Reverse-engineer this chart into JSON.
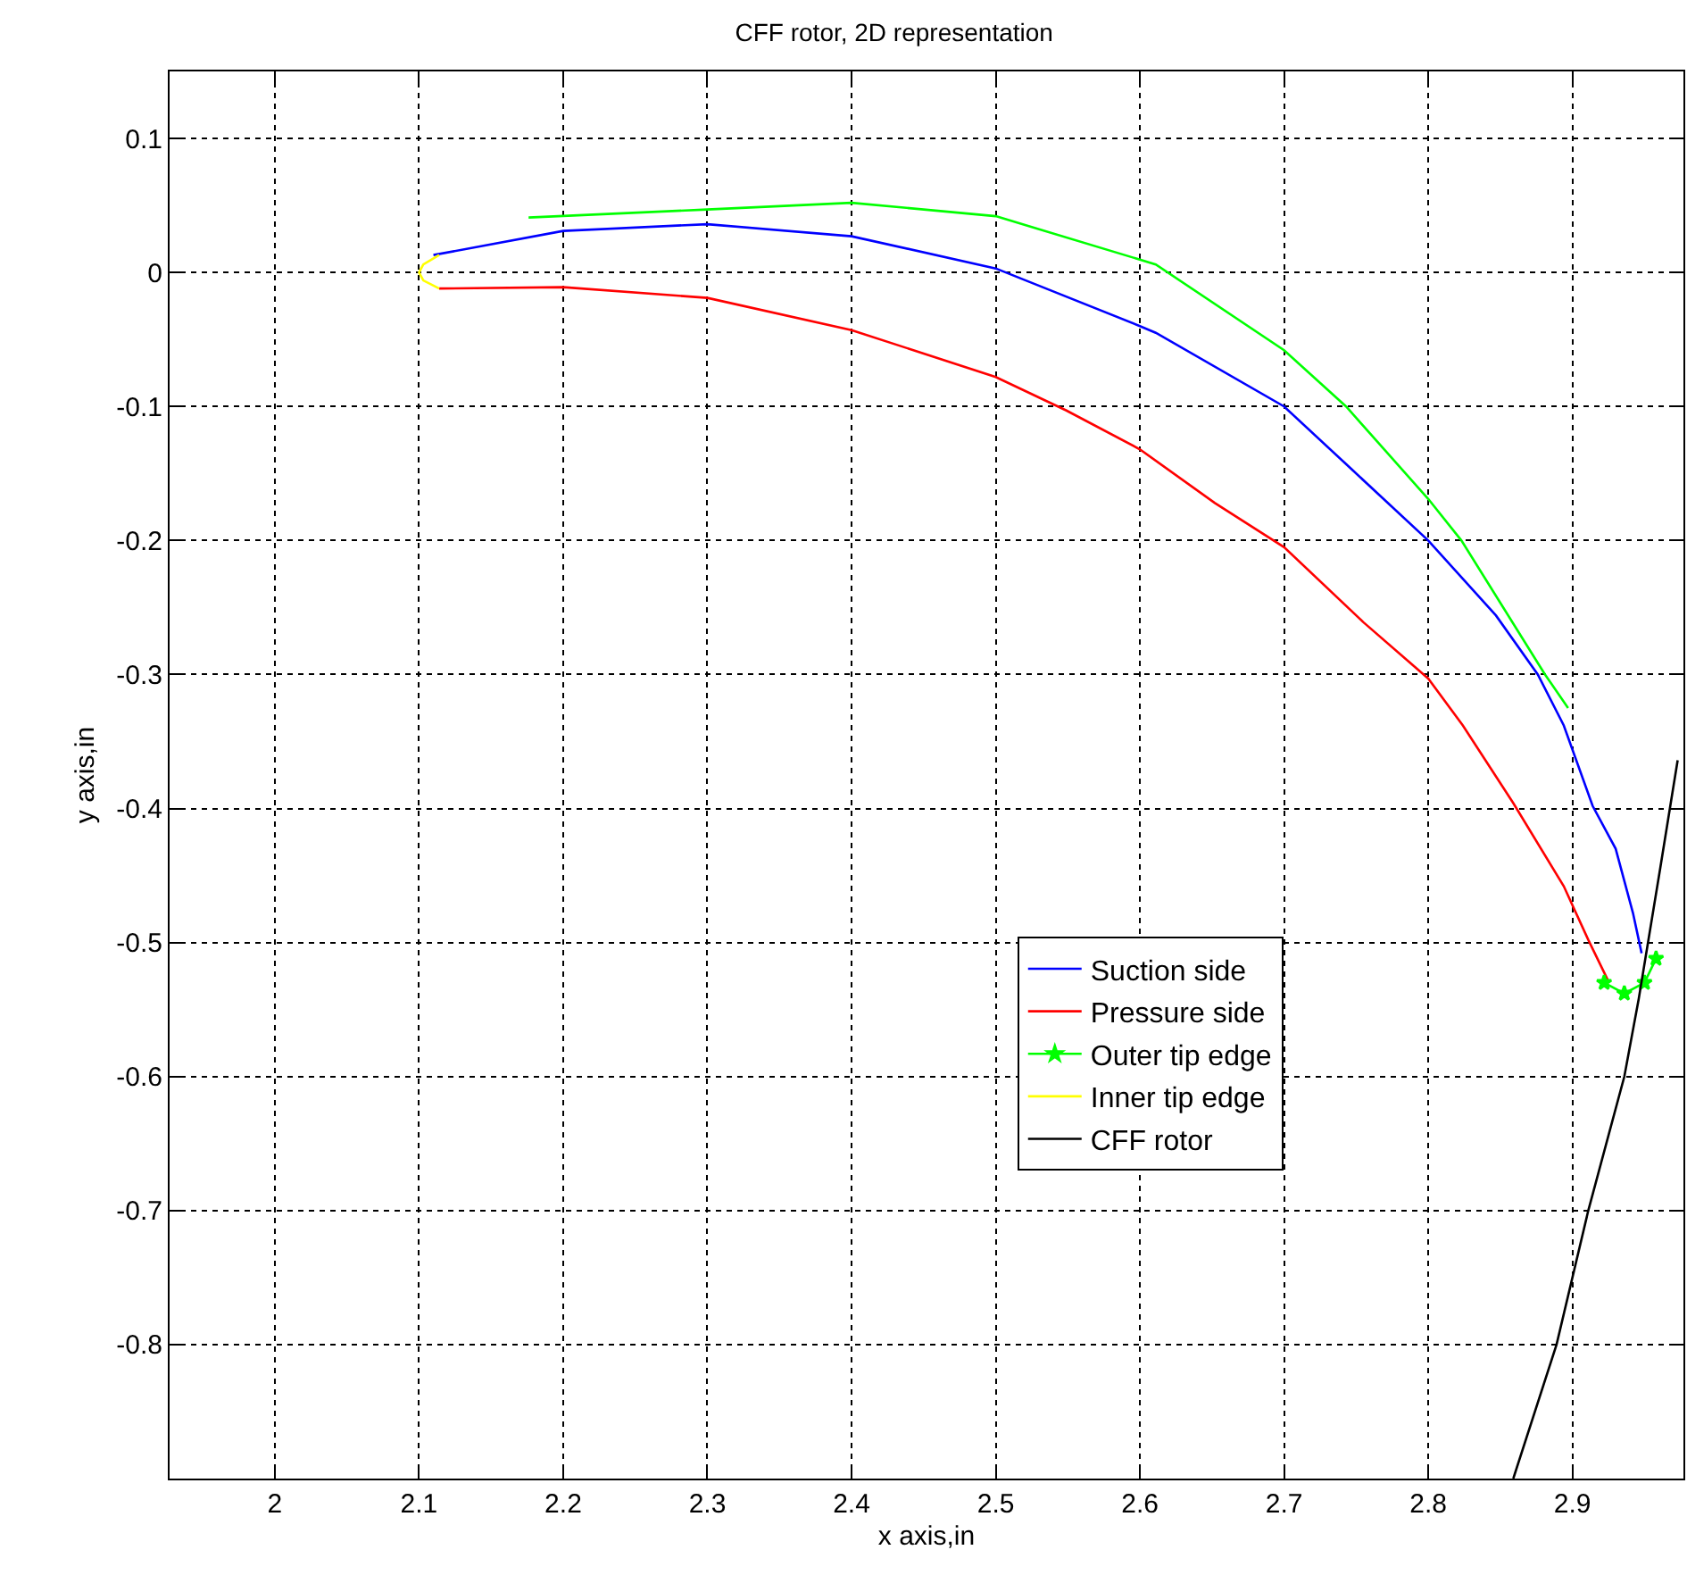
{
  "chart_data": {
    "type": "line",
    "title": "CFF rotor, 2D representation",
    "xlabel": "x axis,in",
    "ylabel": "y axis,in",
    "xlim": [
      1.927,
      2.977
    ],
    "xticks": [
      2,
      2.1,
      2.2,
      2.3,
      2.4,
      2.5,
      2.6,
      2.7,
      2.8,
      2.9
    ],
    "ylim": [
      -0.9,
      0.15
    ],
    "yticks": [
      -0.8,
      -0.7,
      -0.6,
      -0.5,
      -0.4,
      -0.3,
      -0.2,
      -0.1,
      0,
      0.1
    ],
    "grid": true,
    "legend": "bottom right",
    "line_style": "solid",
    "series": [
      {
        "name": "Suction side",
        "color": "#0000ff",
        "marker": "none",
        "x": [
          2.11,
          2.2,
          2.3,
          2.4,
          2.5,
          2.6,
          2.611,
          2.7,
          2.747,
          2.8,
          2.847,
          2.876,
          2.894,
          2.914,
          2.93,
          2.942,
          2.948
        ],
        "values": [
          0.013,
          0.031,
          0.036,
          0.027,
          0.003,
          -0.04,
          -0.045,
          -0.1,
          -0.147,
          -0.2,
          -0.256,
          -0.3,
          -0.338,
          -0.398,
          -0.43,
          -0.478,
          -0.508
        ]
      },
      {
        "name": "Pressure side",
        "color": "#ff0000",
        "marker": "none",
        "x": [
          2.114,
          2.2,
          2.3,
          2.4,
          2.5,
          2.549,
          2.6,
          2.652,
          2.7,
          2.755,
          2.8,
          2.824,
          2.859,
          2.894,
          2.911,
          2.925
        ],
        "values": [
          -0.012,
          -0.011,
          -0.019,
          -0.043,
          -0.078,
          -0.103,
          -0.132,
          -0.172,
          -0.205,
          -0.261,
          -0.303,
          -0.338,
          -0.396,
          -0.458,
          -0.498,
          -0.529
        ]
      },
      {
        "color": "#00ff00",
        "marker": "none",
        "x": [
          2.176,
          2.3,
          2.4,
          2.5,
          2.611,
          2.7,
          2.743,
          2.8,
          2.823,
          2.881,
          2.897
        ],
        "values": [
          0.041,
          0.047,
          0.052,
          0.042,
          0.006,
          -0.058,
          -0.1,
          -0.169,
          -0.2,
          -0.3,
          -0.325
        ]
      },
      {
        "name": "Outer tip edge",
        "color": "#00ff00",
        "marker": "star",
        "x": [
          2.922,
          2.936,
          2.95,
          2.958
        ],
        "values": [
          -0.53,
          -0.538,
          -0.53,
          -0.512
        ]
      },
      {
        "name": "Inner tip edge",
        "color": "#ffff00",
        "marker": "none",
        "x": [
          2.114,
          2.103,
          2.1,
          2.103,
          2.114
        ],
        "values": [
          0.013,
          0.006,
          0,
          -0.006,
          -0.012
        ]
      },
      {
        "name": "CFF rotor",
        "color": "#000000",
        "marker": "none",
        "x": [
          2.859,
          2.889,
          2.911,
          2.936,
          2.946,
          2.961,
          2.973
        ],
        "values": [
          -0.9,
          -0.8,
          -0.7,
          -0.6,
          -0.542,
          -0.444,
          -0.364
        ]
      }
    ]
  }
}
